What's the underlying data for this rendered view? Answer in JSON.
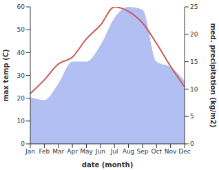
{
  "chart_data": {
    "type": "line",
    "x_label": "date (month)",
    "y_label": "max temp (C)",
    "y2_label": "med. precipitation (kg/m2)",
    "categories": [
      "Jan",
      "Feb",
      "Mar",
      "Apr",
      "May",
      "Jun",
      "Jul",
      "Aug",
      "Sep",
      "Oct",
      "Nov",
      "Dec"
    ],
    "series": [
      {
        "name": "max temp",
        "type": "line",
        "color": "#c85a55",
        "values": [
          22,
          28,
          35,
          38,
          46,
          52,
          60,
          58,
          53,
          44,
          34,
          25
        ]
      },
      {
        "name": "med. precipitation",
        "type": "area",
        "axis": "y2",
        "color": "#b1bff2",
        "values": [
          8.5,
          8,
          11,
          15,
          15,
          18,
          23,
          25,
          24.5,
          15,
          14,
          11.5
        ]
      }
    ],
    "ylim": [
      0,
      60
    ],
    "yticks": [
      0,
      10,
      20,
      30,
      40,
      50,
      60
    ],
    "y2lim": [
      0,
      25
    ],
    "y2ticks": [
      0,
      5,
      10,
      15,
      20,
      25
    ],
    "grid": false
  }
}
